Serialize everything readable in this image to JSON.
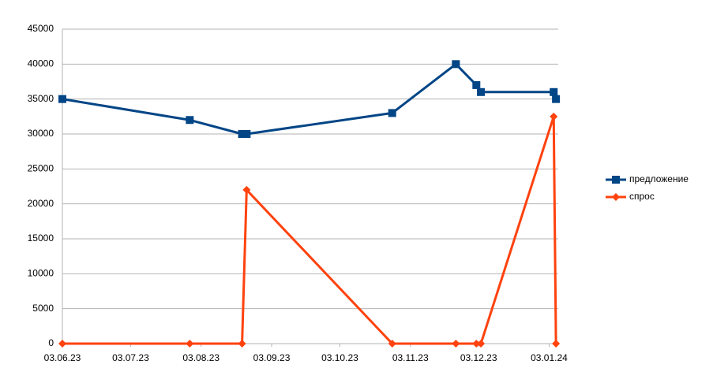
{
  "chart_data": {
    "type": "line",
    "x": [
      "03.06.23",
      "29.07.23",
      "21.08.23",
      "23.08.23",
      "26.10.23",
      "23.11.23",
      "02.12.23",
      "04.12.23",
      "05.01.24",
      "06.01.24"
    ],
    "series": [
      {
        "name": "предложение",
        "color": "#004586",
        "marker": "square",
        "values": [
          35000,
          32000,
          30000,
          30000,
          33000,
          40000,
          37000,
          36000,
          36000,
          35000
        ]
      },
      {
        "name": "спрос",
        "color": "#ff420e",
        "marker": "diamond",
        "values": [
          0,
          0,
          0,
          22000,
          0,
          0,
          0,
          0,
          32500,
          0
        ]
      }
    ],
    "xlim": [
      "03.06.23",
      "07.01.24"
    ],
    "xticks": [
      "03.06.23",
      "03.07.23",
      "03.08.23",
      "03.09.23",
      "03.10.23",
      "03.11.23",
      "03.12.23",
      "03.01.24"
    ],
    "ylim": [
      0,
      45000
    ],
    "yticks": [
      0,
      5000,
      10000,
      15000,
      20000,
      25000,
      30000,
      35000,
      40000,
      45000
    ],
    "grid": true,
    "legend": "right"
  }
}
